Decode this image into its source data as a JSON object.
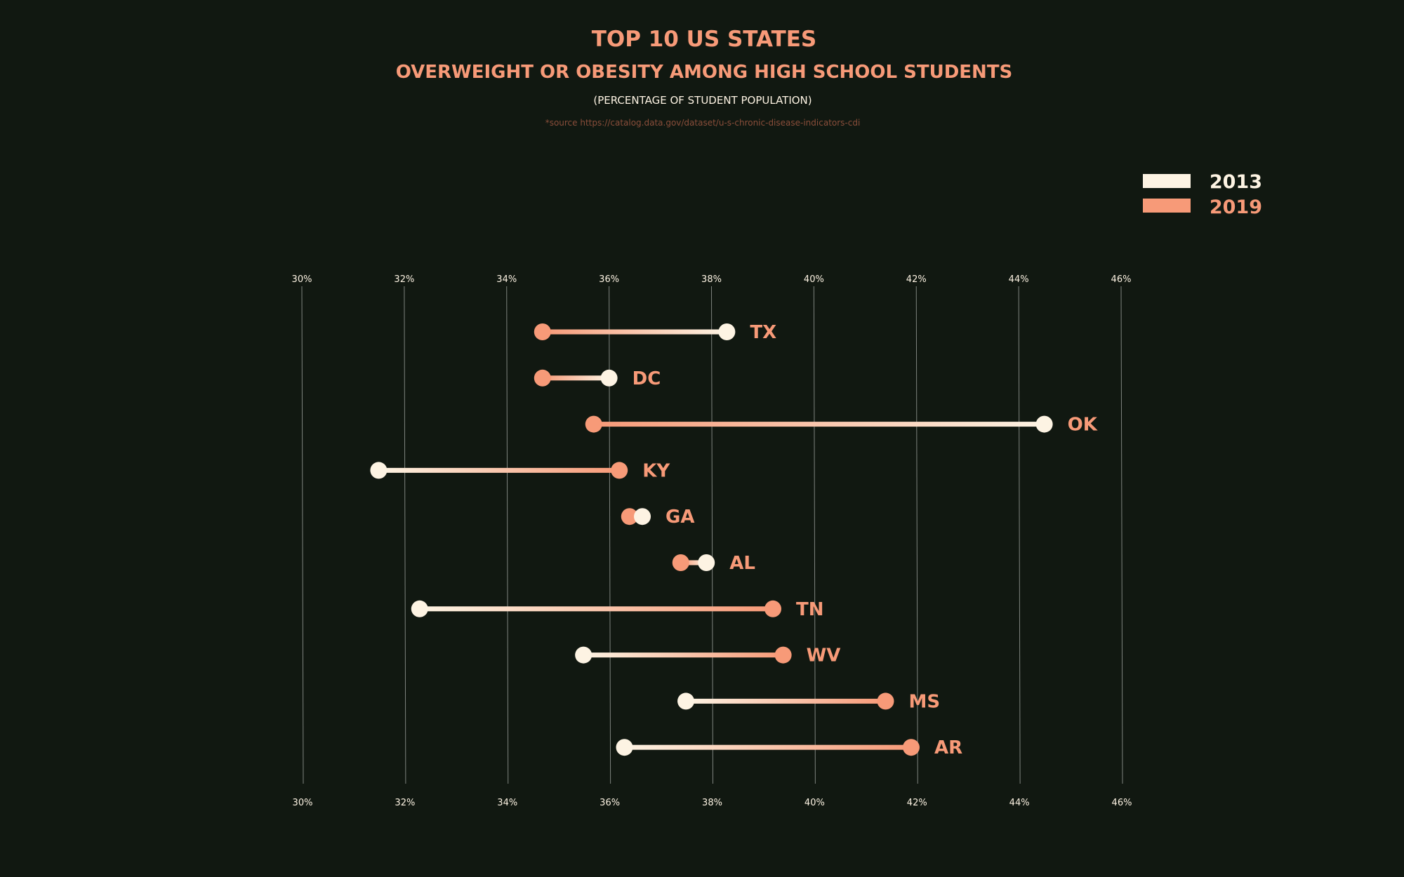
{
  "colors": {
    "background": "#111811",
    "accent": "#F79A78",
    "light": "#FDF3E3",
    "source": "#8A4E3A",
    "grid": "#7f847f"
  },
  "chart_data": {
    "type": "dumbbell",
    "title": "TOP 10 US STATES",
    "subtitle": "OVERWEIGHT OR OBESITY AMONG HIGH SCHOOL STUDENTS",
    "unit_note": "(PERCENTAGE OF STUDENT POPULATION)",
    "source": "*source https://catalog.data.gov/dataset/u-s-chronic-disease-indicators-cdi",
    "xlim": [
      30,
      46
    ],
    "x_ticks": [
      "30%",
      "32%",
      "34%",
      "36%",
      "38%",
      "40%",
      "42%",
      "44%",
      "46%"
    ],
    "grid": true,
    "legend_position": "top-right",
    "series": [
      {
        "name": "2013",
        "color": "#FDF3E3"
      },
      {
        "name": "2019",
        "color": "#F79A78"
      }
    ],
    "categories": [
      "TX",
      "DC",
      "OK",
      "KY",
      "GA",
      "AL",
      "TN",
      "WV",
      "MS",
      "AR"
    ],
    "values_2013": [
      38.3,
      36.0,
      44.5,
      31.5,
      36.65,
      37.9,
      32.3,
      35.5,
      37.5,
      36.3
    ],
    "values_2019": [
      34.7,
      34.7,
      35.7,
      36.2,
      36.4,
      37.4,
      39.2,
      39.4,
      41.4,
      41.9
    ]
  }
}
